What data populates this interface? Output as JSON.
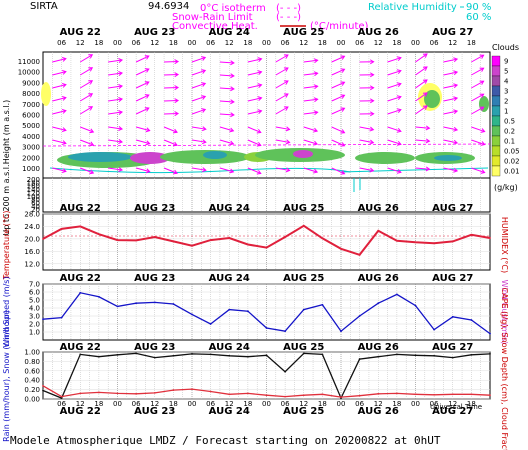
{
  "header": {
    "station": "SIRTA",
    "coords": "94.6934",
    "legend_iso": "0°C isotherm",
    "legend_snow": "Snow-Rain Limit",
    "legend_conv": "Convective Heat.",
    "iso_dash": "(- - -)",
    "snow_dash": "(- - -)",
    "conv_unit": "(°C/minute)",
    "rh_label": "Relative Humidity",
    "rh_1": "90 %",
    "rh_2": "60 %"
  },
  "days": [
    "AUG 22",
    "AUG 23",
    "AUG 24",
    "AUG 25",
    "AUG 26",
    "AUG 27"
  ],
  "hour_ticks": [
    "06",
    "12",
    "18",
    "00",
    "06",
    "12",
    "18",
    "00",
    "06",
    "12",
    "18",
    "00",
    "06",
    "12",
    "18",
    "00",
    "06",
    "12",
    "18",
    "00",
    "06",
    "12",
    "18"
  ],
  "caption": "Modele Atmospherique LMDZ / Forecast starting on 20200822 at 0hUT",
  "xaxis_label": "Universal Time",
  "chart_data": [
    {
      "type": "heatmap",
      "panel": "clouds",
      "ylabel": "Height (m a.s.l.)",
      "ylabel2": "Up to 200 m a.s.l.",
      "yticks": [
        "11000",
        "10000",
        "9000",
        "8000",
        "7000",
        "6000",
        "5000",
        "4000",
        "3000",
        "2000",
        "1000",
        "200",
        "180",
        "160",
        "140",
        "120",
        "100",
        "80",
        "60",
        "40",
        "20"
      ],
      "colorbar_title": "Clouds",
      "colorbar_unit": "(g/kg)",
      "colorbar_levels": [
        "9",
        "5",
        "4",
        "3",
        "2",
        "1",
        "0.5",
        "0.2",
        "0.1",
        "0.05",
        "0.02",
        "0.01"
      ],
      "colorbar_colors": [
        "#ff00ff",
        "#cc44cc",
        "#a04aa8",
        "#3d5aa8",
        "#2f7fb3",
        "#2aa1ae",
        "#2fb58a",
        "#5fc25a",
        "#8ad13c",
        "#b8de2a",
        "#e2ea2c",
        "#ffff66"
      ]
    },
    {
      "type": "line",
      "panel": "temperature",
      "ylabel": "Temperature (°C)",
      "ylabel2": "HUMIDEX (°C)",
      "yticks": [
        "28.0",
        "24.0",
        "20.0",
        "16.0",
        "12.0"
      ],
      "ylim": [
        10,
        28
      ],
      "color": "#e0203c",
      "x_hours": [
        0,
        6,
        12,
        18,
        24,
        30,
        36,
        42,
        48,
        54,
        60,
        66,
        72,
        78,
        84,
        90,
        96,
        102,
        108,
        114,
        120,
        126,
        132,
        138,
        144
      ],
      "values": [
        20.0,
        23.2,
        24.0,
        21.5,
        19.6,
        19.5,
        20.6,
        19.2,
        17.8,
        19.6,
        20.3,
        18.2,
        17.2,
        20.6,
        24.2,
        20.2,
        16.8,
        14.9,
        22.6,
        19.4,
        18.9,
        18.6,
        19.2,
        21.3,
        20.3
      ]
    },
    {
      "type": "line",
      "panel": "wind",
      "ylabel": "Wind Speed (m/s)",
      "ylabel2": "Wind Gust (m/s)",
      "yticks": [
        "7.0",
        "6.0",
        "5.0",
        "4.0",
        "3.0",
        "2.0",
        "1.0"
      ],
      "ylim": [
        0,
        7
      ],
      "color": "#1414c8",
      "x_hours": [
        0,
        6,
        12,
        18,
        24,
        30,
        36,
        42,
        48,
        54,
        60,
        66,
        72,
        78,
        84,
        90,
        96,
        102,
        108,
        114,
        120,
        126,
        132,
        138,
        144
      ],
      "values": [
        2.6,
        2.8,
        5.9,
        5.4,
        4.2,
        4.6,
        4.7,
        4.5,
        3.2,
        2.0,
        3.8,
        3.6,
        1.5,
        1.1,
        3.8,
        4.4,
        1.1,
        3.0,
        4.6,
        5.7,
        4.3,
        1.3,
        2.9,
        2.5,
        0.8
      ]
    },
    {
      "type": "line",
      "panel": "precip",
      "ylabel": "Rain (mm/hour), Snow (cm/hour)",
      "ylabel2": "CAPE (J/g), Snow Depth (cm), Cloud Fraction",
      "yticks": [
        "1.00",
        "0.80",
        "0.60",
        "0.40",
        "0.20",
        "0.00"
      ],
      "ylim": [
        0,
        1
      ],
      "series": [
        {
          "color": "#111111",
          "x_hours": [
            0,
            6,
            12,
            18,
            24,
            30,
            36,
            42,
            48,
            54,
            60,
            66,
            72,
            78,
            84,
            90,
            96,
            102,
            108,
            114,
            120,
            126,
            132,
            138,
            144
          ],
          "values": [
            0.18,
            0.02,
            0.95,
            0.9,
            0.94,
            0.97,
            0.88,
            0.92,
            0.96,
            0.95,
            0.92,
            0.9,
            0.93,
            0.58,
            0.97,
            0.95,
            0.02,
            0.85,
            0.9,
            0.95,
            0.93,
            0.92,
            0.88,
            0.94,
            0.96
          ]
        },
        {
          "color": "#e0303c",
          "x_hours": [
            0,
            6,
            12,
            18,
            24,
            30,
            36,
            42,
            48,
            54,
            60,
            66,
            72,
            78,
            84,
            90,
            96,
            102,
            108,
            114,
            120,
            126,
            132,
            138,
            144
          ],
          "values": [
            0.28,
            0.05,
            0.12,
            0.14,
            0.12,
            0.11,
            0.13,
            0.19,
            0.21,
            0.16,
            0.1,
            0.12,
            0.08,
            0.05,
            0.08,
            0.1,
            0.04,
            0.07,
            0.11,
            0.12,
            0.1,
            0.09,
            0.1,
            0.1,
            0.08
          ]
        }
      ]
    }
  ]
}
